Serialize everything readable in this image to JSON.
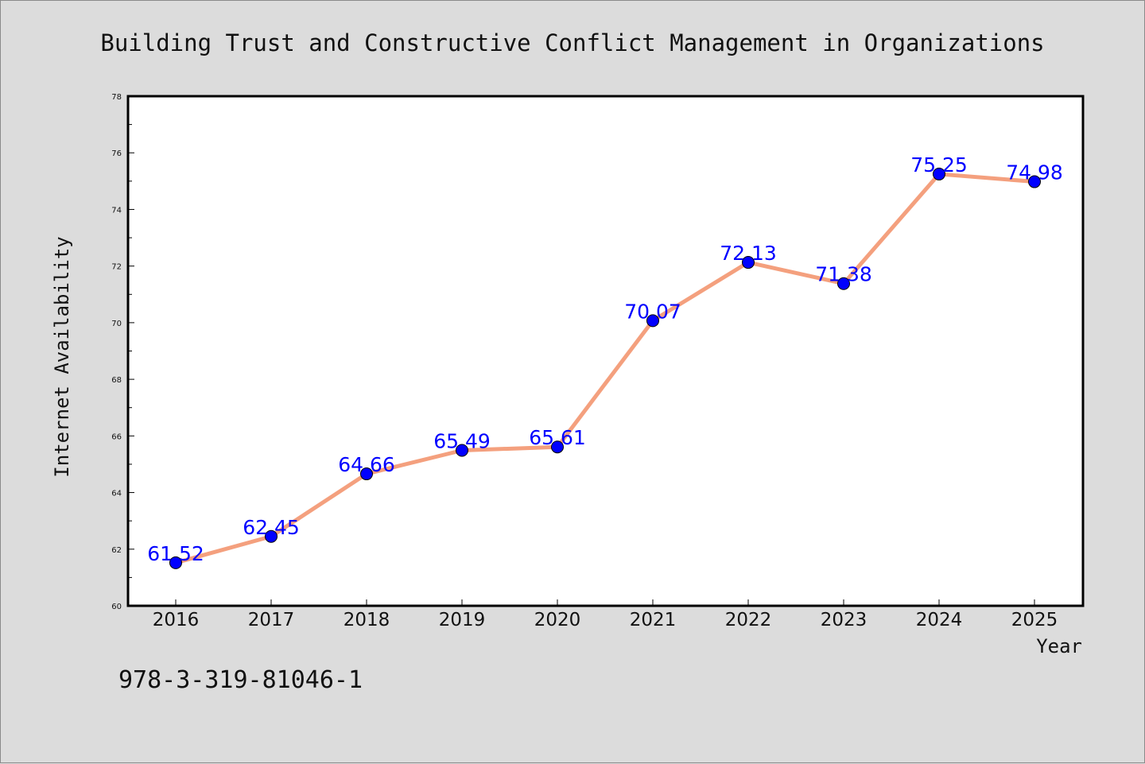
{
  "colors": {
    "background": "#dcdcdc",
    "plot_background": "#ffffff",
    "line": "#f4a07e",
    "marker": "#0000ff",
    "label": "#0000ff",
    "axis": "#000000"
  },
  "isbn": "978-3-319-81046-1",
  "chart_data": {
    "type": "line",
    "title": "Building Trust and Constructive Conflict Management in Organizations",
    "xlabel": "Year",
    "ylabel": "Internet Availability",
    "categories": [
      "2016",
      "2017",
      "2018",
      "2019",
      "2020",
      "2021",
      "2022",
      "2023",
      "2024",
      "2025"
    ],
    "series": [
      {
        "values": [
          61.52,
          62.45,
          64.66,
          65.49,
          65.61,
          70.07,
          72.13,
          71.38,
          75.25,
          74.98
        ],
        "labels": [
          "61.52",
          "62.45",
          "64.66",
          "65.49",
          "65.61",
          "70.07",
          "72.13",
          "71.38",
          "75.25",
          "74.98"
        ]
      }
    ],
    "ylim": [
      60,
      78
    ],
    "yticks": [
      60,
      62,
      64,
      66,
      68,
      70,
      72,
      74,
      76,
      78
    ],
    "grid": false,
    "legend": "none"
  }
}
